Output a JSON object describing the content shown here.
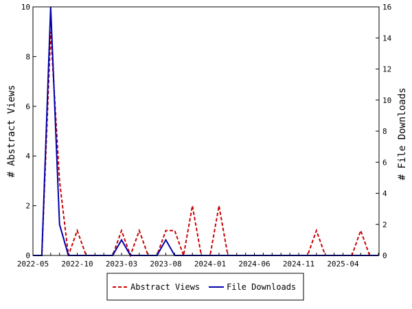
{
  "chart_data": {
    "type": "line",
    "ylabel": "# Abstract Views",
    "y2label": "# File Downloads",
    "ylim": [
      0,
      10
    ],
    "y2lim": [
      0,
      16
    ],
    "yticks": [
      0,
      2,
      4,
      6,
      8,
      10
    ],
    "y2ticks": [
      0,
      2,
      4,
      6,
      8,
      10,
      12,
      14,
      16
    ],
    "xtick_labels": [
      "2022-05",
      "2022-10",
      "2023-03",
      "2023-08",
      "2024-01",
      "2024-06",
      "2024-11",
      "2025-04"
    ],
    "x": [
      "2022-05",
      "2022-06",
      "2022-07",
      "2022-08",
      "2022-09",
      "2022-10",
      "2022-11",
      "2022-12",
      "2023-01",
      "2023-02",
      "2023-03",
      "2023-04",
      "2023-05",
      "2023-06",
      "2023-07",
      "2023-08",
      "2023-09",
      "2023-10",
      "2023-11",
      "2023-12",
      "2024-01",
      "2024-02",
      "2024-03",
      "2024-04",
      "2024-05",
      "2024-06",
      "2024-07",
      "2024-08",
      "2024-09",
      "2024-10",
      "2024-11",
      "2024-12",
      "2025-01",
      "2025-02",
      "2025-03",
      "2025-04",
      "2025-05",
      "2025-06",
      "2025-07",
      "2025-08"
    ],
    "series": [
      {
        "name": "Abstract Views",
        "axis": "left",
        "color": "#cc0000",
        "style": "dashed",
        "values": [
          0,
          0,
          9,
          3,
          0,
          1,
          0,
          0,
          0,
          0,
          1,
          0,
          1,
          0,
          0,
          1,
          1,
          0,
          2,
          0,
          0,
          2,
          0,
          0,
          0,
          0,
          0,
          0,
          0,
          0,
          0,
          0,
          1,
          0,
          0,
          0,
          0,
          1,
          0,
          0
        ]
      },
      {
        "name": "File Downloads",
        "axis": "right",
        "color": "#0000aa",
        "style": "solid",
        "values": [
          0,
          0,
          16,
          2,
          0,
          0,
          0,
          0,
          0,
          0,
          1,
          0,
          0,
          0,
          0,
          1,
          0,
          0,
          0,
          0,
          0,
          0,
          0,
          0,
          0,
          0,
          0,
          0,
          0,
          0,
          0,
          0,
          0,
          0,
          0,
          0,
          0,
          0,
          0,
          0
        ]
      }
    ],
    "legend": "bottom"
  }
}
